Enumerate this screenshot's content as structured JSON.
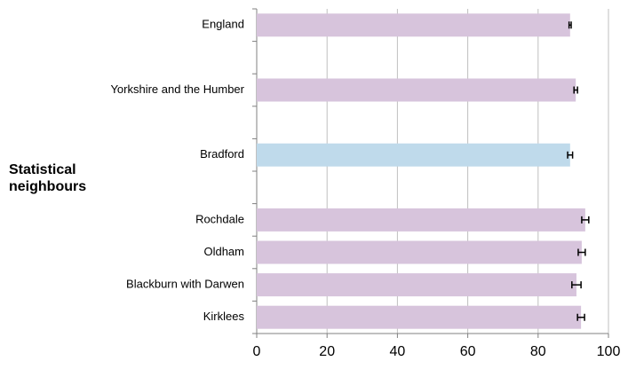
{
  "chart_data": {
    "type": "bar",
    "orientation": "horizontal",
    "annotation": "Statistical neighbours",
    "categories": [
      "England",
      null,
      "Yorkshire and the Humber",
      null,
      "Bradford",
      null,
      "Rochdale",
      "Oldham",
      "Blackburn with Darwen",
      "Kirklees"
    ],
    "values": [
      89.1,
      null,
      90.7,
      null,
      89.1,
      null,
      93.4,
      92.4,
      90.9,
      92.2
    ],
    "errors": [
      0.3,
      null,
      0.5,
      null,
      0.7,
      null,
      1.0,
      1.0,
      1.3,
      1.0
    ],
    "colors": [
      "#d7c4dc",
      null,
      "#d7c4dc",
      null,
      "#bfdaeb",
      null,
      "#d7c4dc",
      "#d7c4dc",
      "#d7c4dc",
      "#d7c4dc"
    ],
    "xlim": [
      0,
      100
    ],
    "xticks": [
      0,
      20,
      40,
      60,
      80,
      100
    ],
    "grid": true
  }
}
